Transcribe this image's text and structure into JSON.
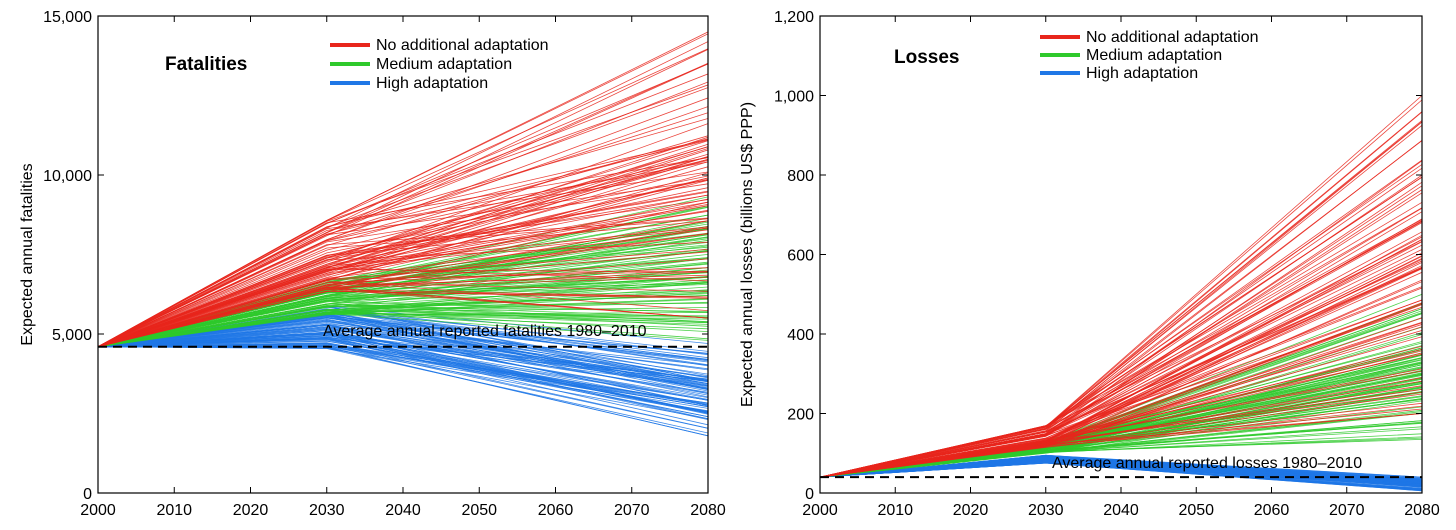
{
  "chart_data": [
    {
      "type": "line",
      "panel_label": "Fatalities",
      "title": "",
      "xlabel": "",
      "ylabel": "Expected annual fatalities",
      "xlim": [
        2000,
        2080
      ],
      "ylim": [
        0,
        15000
      ],
      "x_ticks": [
        2000,
        2010,
        2020,
        2030,
        2040,
        2050,
        2060,
        2070,
        2080
      ],
      "x_tick_labels": [
        "2000",
        "2010",
        "2020",
        "2030",
        "2040",
        "2050",
        "2060",
        "2070",
        "2080"
      ],
      "y_ticks": [
        0,
        5000,
        10000,
        15000
      ],
      "y_tick_labels": [
        "0",
        "5,000",
        "10,000",
        "15,000"
      ],
      "x": [
        2000,
        2030,
        2080
      ],
      "legend": {
        "placement": "top-center",
        "entries": [
          {
            "label": "No additional adaptation",
            "color": "#e8261c"
          },
          {
            "label": "Medium adaptation",
            "color": "#2ec92b"
          },
          {
            "label": "High adaptation",
            "color": "#1f77e6"
          }
        ]
      },
      "series": [
        {
          "group": "high",
          "color": "#1f77e6",
          "start": 4600,
          "y2030_range": [
            4500,
            5900
          ],
          "y2080_range": [
            1800,
            4700
          ],
          "count": 90,
          "seed": 11
        },
        {
          "group": "medium",
          "color": "#2ec92b",
          "start": 4600,
          "y2030_range": [
            5600,
            6700
          ],
          "y2080_range": [
            4800,
            9400
          ],
          "count": 90,
          "seed": 23
        },
        {
          "group": "none",
          "color": "#e8261c",
          "start": 4600,
          "y2030_range": [
            6300,
            8700
          ],
          "y2080_range": [
            5500,
            14500
          ],
          "count": 90,
          "seed": 37
        }
      ],
      "reference_line": {
        "value": 4600,
        "label": "Average annual reported fatalities 1980–2010"
      }
    },
    {
      "type": "line",
      "panel_label": "Losses",
      "title": "",
      "xlabel": "",
      "ylabel": "Expected annual losses (billions US$ PPP)",
      "xlim": [
        2000,
        2080
      ],
      "ylim": [
        0,
        1200
      ],
      "x_ticks": [
        2000,
        2010,
        2020,
        2030,
        2040,
        2050,
        2060,
        2070,
        2080
      ],
      "x_tick_labels": [
        "2000",
        "2010",
        "2020",
        "2030",
        "2040",
        "2050",
        "2060",
        "2070",
        "2080"
      ],
      "y_ticks": [
        0,
        200,
        400,
        600,
        800,
        1000,
        1200
      ],
      "y_tick_labels": [
        "0",
        "200",
        "400",
        "600",
        "800",
        "1,000",
        "1,200"
      ],
      "x": [
        2000,
        2030,
        2080
      ],
      "legend": {
        "placement": "top-center",
        "entries": [
          {
            "label": "No additional adaptation",
            "color": "#e8261c"
          },
          {
            "label": "Medium adaptation",
            "color": "#2ec92b"
          },
          {
            "label": "High adaptation",
            "color": "#1f77e6"
          }
        ]
      },
      "series": [
        {
          "group": "high",
          "color": "#1f77e6",
          "start": 40,
          "y2030_range": [
            75,
            95
          ],
          "y2080_range": [
            5,
            40
          ],
          "count": 90,
          "seed": 41
        },
        {
          "group": "medium",
          "color": "#2ec92b",
          "start": 40,
          "y2030_range": [
            100,
            130
          ],
          "y2080_range": [
            130,
            500
          ],
          "count": 90,
          "seed": 53
        },
        {
          "group": "none",
          "color": "#e8261c",
          "start": 40,
          "y2030_range": [
            115,
            170
          ],
          "y2080_range": [
            200,
            1000
          ],
          "count": 90,
          "seed": 67
        }
      ],
      "reference_line": {
        "value": 40,
        "label": "Average annual reported losses 1980–2010"
      }
    }
  ]
}
